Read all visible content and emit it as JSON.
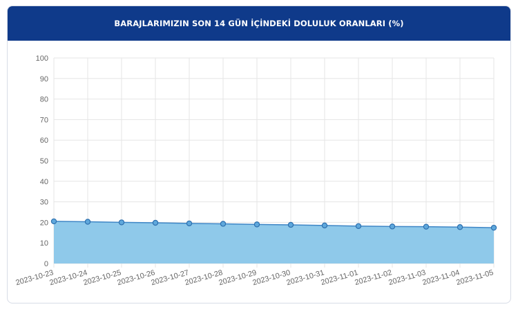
{
  "header": {
    "title": "BARAJLARIMIZIN SON 14 GÜN İÇİNDEKİ DOLULUK ORANLARI (%)"
  },
  "colors": {
    "header_bg": "#0f3a8a",
    "area_fill": "#8fc9ea",
    "line": "#3e86c6",
    "point_fill": "#5fa8dc",
    "grid": "#e5e5e5"
  },
  "chart_data": {
    "type": "area",
    "title": "BARAJLARIMIZIN SON 14 GÜN İÇİNDEKİ DOLULUK ORANLARI (%)",
    "xlabel": "",
    "ylabel": "",
    "ylim": [
      0,
      100
    ],
    "y_ticks": [
      0,
      10,
      20,
      30,
      40,
      50,
      60,
      70,
      80,
      90,
      100
    ],
    "grid": true,
    "legend": "none",
    "x": [
      "2023-10-23",
      "2023-10-24",
      "2023-10-25",
      "2023-10-26",
      "2023-10-27",
      "2023-10-28",
      "2023-10-29",
      "2023-10-30",
      "2023-10-31",
      "2023-11-01",
      "2023-11-02",
      "2023-11-03",
      "2023-11-04",
      "2023-11-05"
    ],
    "series": [
      {
        "values": [
          20.5,
          20.3,
          20.0,
          19.8,
          19.5,
          19.3,
          19.0,
          18.8,
          18.5,
          18.2,
          18.0,
          17.9,
          17.7,
          17.4
        ]
      }
    ]
  }
}
